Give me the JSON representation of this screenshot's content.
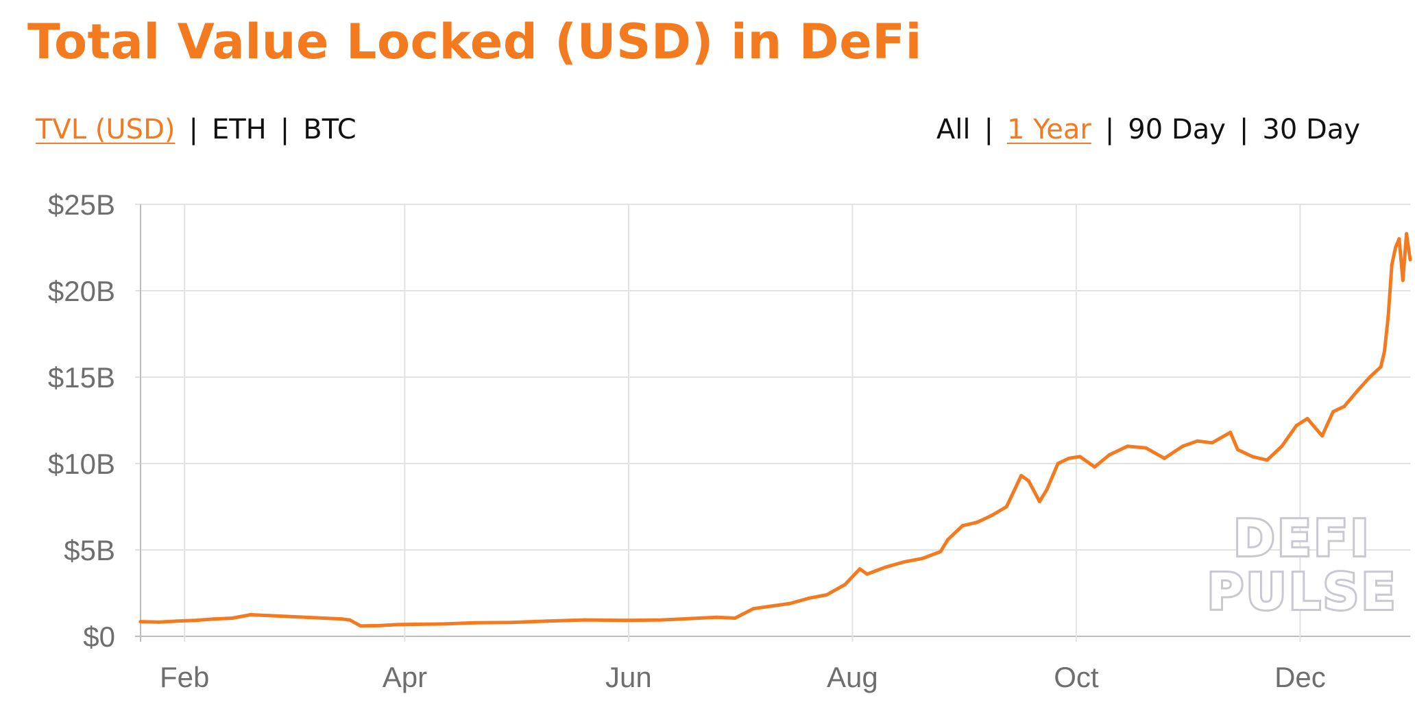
{
  "header": {
    "title": "Total Value Locked (USD) in DeFi"
  },
  "metric_tabs": [
    {
      "label": "TVL (USD)",
      "active": true
    },
    {
      "label": "ETH",
      "active": false
    },
    {
      "label": "BTC",
      "active": false
    }
  ],
  "range_tabs": [
    {
      "label": "All",
      "active": false
    },
    {
      "label": "1 Year",
      "active": true
    },
    {
      "label": "90 Day",
      "active": false
    },
    {
      "label": "30 Day",
      "active": false
    }
  ],
  "separator": "|",
  "watermark": {
    "line1": "DEFI",
    "line2": "PULSE"
  },
  "colors": {
    "accent": "#f47a20",
    "grid": "#e2e2e2",
    "axis_text": "#6e6e6e",
    "watermark_stroke": "#c8c8d0"
  },
  "chart_data": {
    "type": "line",
    "title": "Total Value Locked (USD) in DeFi",
    "xlabel": "",
    "ylabel": "",
    "x_tick_labels": [
      "Feb",
      "Apr",
      "Jun",
      "Aug",
      "Oct",
      "Dec"
    ],
    "x_tick_dates": [
      "2020-02-01",
      "2020-04-01",
      "2020-06-01",
      "2020-08-01",
      "2020-10-01",
      "2020-12-01"
    ],
    "y_tick_labels": [
      "$0",
      "$5B",
      "$10B",
      "$15B",
      "$20B",
      "$25B"
    ],
    "y_tick_values": [
      0,
      5,
      10,
      15,
      20,
      25
    ],
    "y_unit": "USD billions",
    "xlim": [
      "2020-01-20",
      "2020-12-31"
    ],
    "ylim": [
      0,
      25
    ],
    "grid": true,
    "series": [
      {
        "points": [
          [
            "2020-01-20",
            0.85
          ],
          [
            "2020-01-25",
            0.82
          ],
          [
            "2020-01-30",
            0.88
          ],
          [
            "2020-02-04",
            0.92
          ],
          [
            "2020-02-09",
            1.0
          ],
          [
            "2020-02-14",
            1.05
          ],
          [
            "2020-02-19",
            1.25
          ],
          [
            "2020-02-24",
            1.2
          ],
          [
            "2020-02-29",
            1.15
          ],
          [
            "2020-03-05",
            1.1
          ],
          [
            "2020-03-10",
            1.05
          ],
          [
            "2020-03-15",
            1.0
          ],
          [
            "2020-03-17",
            0.95
          ],
          [
            "2020-03-20",
            0.6
          ],
          [
            "2020-03-25",
            0.62
          ],
          [
            "2020-03-30",
            0.68
          ],
          [
            "2020-04-05",
            0.7
          ],
          [
            "2020-04-12",
            0.72
          ],
          [
            "2020-04-20",
            0.78
          ],
          [
            "2020-04-30",
            0.8
          ],
          [
            "2020-05-10",
            0.88
          ],
          [
            "2020-05-20",
            0.95
          ],
          [
            "2020-05-31",
            0.92
          ],
          [
            "2020-06-10",
            0.95
          ],
          [
            "2020-06-20",
            1.05
          ],
          [
            "2020-06-25",
            1.1
          ],
          [
            "2020-06-30",
            1.05
          ],
          [
            "2020-07-05",
            1.6
          ],
          [
            "2020-07-10",
            1.75
          ],
          [
            "2020-07-15",
            1.9
          ],
          [
            "2020-07-20",
            2.2
          ],
          [
            "2020-07-25",
            2.4
          ],
          [
            "2020-07-30",
            3.0
          ],
          [
            "2020-08-03",
            3.9
          ],
          [
            "2020-08-05",
            3.6
          ],
          [
            "2020-08-10",
            4.0
          ],
          [
            "2020-08-15",
            4.3
          ],
          [
            "2020-08-20",
            4.5
          ],
          [
            "2020-08-25",
            4.9
          ],
          [
            "2020-08-27",
            5.6
          ],
          [
            "2020-08-31",
            6.4
          ],
          [
            "2020-09-04",
            6.6
          ],
          [
            "2020-09-08",
            7.0
          ],
          [
            "2020-09-12",
            7.5
          ],
          [
            "2020-09-16",
            9.3
          ],
          [
            "2020-09-18",
            9.0
          ],
          [
            "2020-09-21",
            7.8
          ],
          [
            "2020-09-23",
            8.5
          ],
          [
            "2020-09-26",
            10.0
          ],
          [
            "2020-09-29",
            10.3
          ],
          [
            "2020-10-02",
            10.4
          ],
          [
            "2020-10-06",
            9.8
          ],
          [
            "2020-10-10",
            10.5
          ],
          [
            "2020-10-15",
            11.0
          ],
          [
            "2020-10-20",
            10.9
          ],
          [
            "2020-10-25",
            10.3
          ],
          [
            "2020-10-30",
            11.0
          ],
          [
            "2020-11-03",
            11.3
          ],
          [
            "2020-11-07",
            11.2
          ],
          [
            "2020-11-12",
            11.8
          ],
          [
            "2020-11-14",
            10.8
          ],
          [
            "2020-11-18",
            10.4
          ],
          [
            "2020-11-22",
            10.2
          ],
          [
            "2020-11-26",
            11.0
          ],
          [
            "2020-11-30",
            12.2
          ],
          [
            "2020-12-03",
            12.6
          ],
          [
            "2020-12-07",
            11.6
          ],
          [
            "2020-12-10",
            13.0
          ],
          [
            "2020-12-13",
            13.3
          ],
          [
            "2020-12-17",
            14.3
          ],
          [
            "2020-12-20",
            15.0
          ],
          [
            "2020-12-23",
            15.6
          ],
          [
            "2020-12-24",
            16.5
          ],
          [
            "2020-12-25",
            18.5
          ],
          [
            "2020-12-26",
            21.5
          ],
          [
            "2020-12-27",
            22.5
          ],
          [
            "2020-12-28",
            23.0
          ],
          [
            "2020-12-29",
            20.6
          ],
          [
            "2020-12-30",
            23.3
          ],
          [
            "2020-12-31",
            21.8
          ]
        ]
      }
    ]
  }
}
